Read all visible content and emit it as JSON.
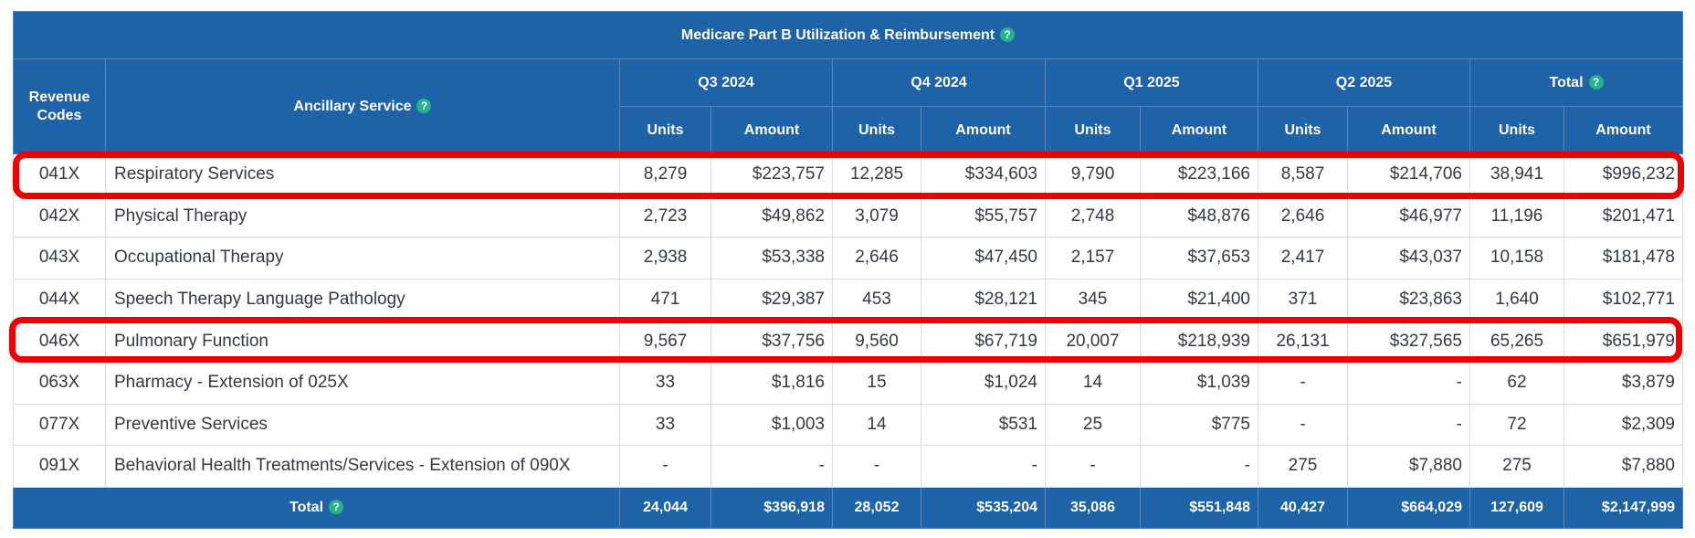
{
  "title": "Medicare Part B Utilization & Reimbursement",
  "help_icon": "?",
  "headers": {
    "revenue_codes": "Revenue Codes",
    "ancillary_service": "Ancillary Service",
    "periods": [
      "Q3 2024",
      "Q4 2024",
      "Q1 2025",
      "Q2 2025",
      "Total"
    ],
    "units": "Units",
    "amount": "Amount"
  },
  "rows": [
    {
      "code": "041X",
      "service": "Respiratory Services",
      "cells": [
        "8,279",
        "$223,757",
        "12,285",
        "$334,603",
        "9,790",
        "$223,166",
        "8,587",
        "$214,706",
        "38,941",
        "$996,232"
      ]
    },
    {
      "code": "042X",
      "service": "Physical Therapy",
      "cells": [
        "2,723",
        "$49,862",
        "3,079",
        "$55,757",
        "2,748",
        "$48,876",
        "2,646",
        "$46,977",
        "11,196",
        "$201,471"
      ]
    },
    {
      "code": "043X",
      "service": "Occupational Therapy",
      "cells": [
        "2,938",
        "$53,338",
        "2,646",
        "$47,450",
        "2,157",
        "$37,653",
        "2,417",
        "$43,037",
        "10,158",
        "$181,478"
      ]
    },
    {
      "code": "044X",
      "service": "Speech Therapy Language Pathology",
      "cells": [
        "471",
        "$29,387",
        "453",
        "$28,121",
        "345",
        "$21,400",
        "371",
        "$23,863",
        "1,640",
        "$102,771"
      ]
    },
    {
      "code": "046X",
      "service": "Pulmonary Function",
      "cells": [
        "9,567",
        "$37,756",
        "9,560",
        "$67,719",
        "20,007",
        "$218,939",
        "26,131",
        "$327,565",
        "65,265",
        "$651,979"
      ]
    },
    {
      "code": "063X",
      "service": "Pharmacy - Extension of 025X",
      "cells": [
        "33",
        "$1,816",
        "15",
        "$1,024",
        "14",
        "$1,039",
        "-",
        "-",
        "62",
        "$3,879"
      ]
    },
    {
      "code": "077X",
      "service": "Preventive Services",
      "cells": [
        "33",
        "$1,003",
        "14",
        "$531",
        "25",
        "$775",
        "-",
        "-",
        "72",
        "$2,309"
      ]
    },
    {
      "code": "091X",
      "service": "Behavioral Health Treatments/Services - Extension of 090X",
      "cells": [
        "-",
        "-",
        "-",
        "-",
        "-",
        "-",
        "275",
        "$7,880",
        "275",
        "$7,880"
      ]
    }
  ],
  "total": {
    "label": "Total",
    "cells": [
      "24,044",
      "$396,918",
      "28,052",
      "$535,204",
      "35,086",
      "$551,848",
      "40,427",
      "$664,029",
      "127,609",
      "$2,147,999"
    ]
  },
  "highlight_color": "#ee0000",
  "header_color": "#1e62a8",
  "help_color": "#27b38a"
}
